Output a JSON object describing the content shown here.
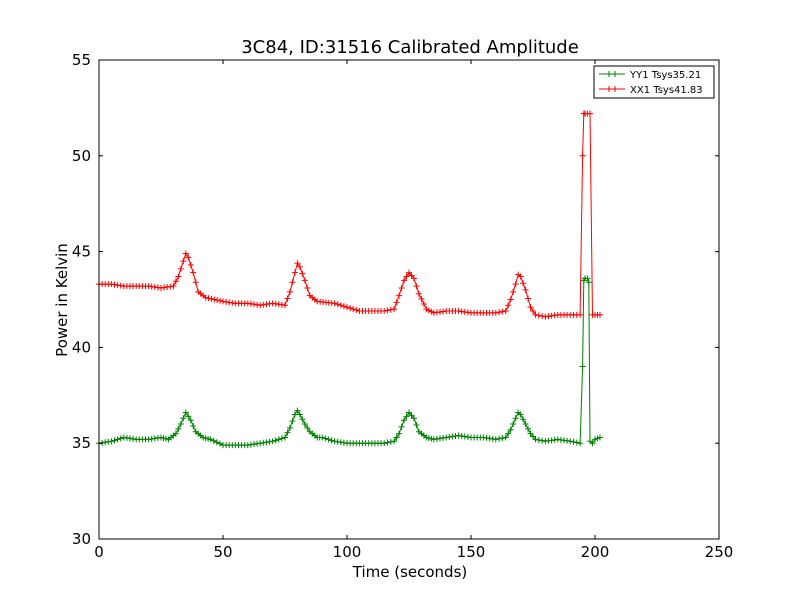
{
  "chart_data": {
    "type": "line",
    "title": "3C84, ID:31516 Calibrated Amplitude",
    "xlabel": "Time (seconds)",
    "ylabel": "Power in Kelvin",
    "xlim": [
      0,
      250
    ],
    "ylim": [
      30,
      55
    ],
    "xticks": [
      0,
      50,
      100,
      150,
      200,
      250
    ],
    "yticks": [
      30,
      35,
      40,
      45,
      50,
      55
    ],
    "grid": false,
    "legend_position": "top-right",
    "marker": "+",
    "series": [
      {
        "name": "YY1 Tsys35.21",
        "color": "#008000",
        "x": [
          0,
          5,
          10,
          15,
          20,
          25,
          28,
          31,
          33,
          35,
          37,
          39,
          42,
          45,
          50,
          55,
          60,
          65,
          70,
          75,
          77,
          79,
          80,
          81,
          83,
          85,
          88,
          90,
          95,
          100,
          105,
          110,
          115,
          119,
          121,
          123,
          125,
          127,
          129,
          132,
          135,
          140,
          145,
          150,
          155,
          160,
          164,
          166,
          168,
          169,
          170,
          172,
          174,
          176,
          180,
          185,
          190,
          194,
          195,
          195.5,
          196,
          197,
          197.5,
          198,
          199,
          200,
          202
        ],
        "values": [
          35.0,
          35.1,
          35.3,
          35.2,
          35.2,
          35.3,
          35.2,
          35.5,
          36.0,
          36.6,
          36.2,
          35.6,
          35.3,
          35.2,
          34.9,
          34.9,
          34.9,
          35.0,
          35.1,
          35.3,
          35.8,
          36.5,
          36.7,
          36.5,
          36.0,
          35.6,
          35.3,
          35.3,
          35.1,
          35.0,
          35.0,
          35.0,
          35.0,
          35.1,
          35.5,
          36.2,
          36.6,
          36.3,
          35.6,
          35.3,
          35.2,
          35.3,
          35.4,
          35.3,
          35.3,
          35.2,
          35.3,
          35.7,
          36.3,
          36.6,
          36.5,
          36.0,
          35.5,
          35.2,
          35.1,
          35.2,
          35.1,
          35.0,
          39.0,
          43.5,
          43.6,
          43.6,
          43.4,
          35.1,
          35.0,
          35.2,
          35.3
        ]
      },
      {
        "name": "XX1 Tsys41.83",
        "color": "#ff0000",
        "x": [
          0,
          5,
          10,
          15,
          20,
          25,
          30,
          32,
          34,
          35,
          36,
          38,
          40,
          43,
          50,
          55,
          60,
          65,
          70,
          75,
          77,
          79,
          80,
          81,
          83,
          85,
          88,
          95,
          100,
          105,
          110,
          115,
          119,
          121,
          123,
          125,
          127,
          129,
          132,
          135,
          140,
          145,
          150,
          155,
          160,
          164,
          166,
          168,
          169,
          170,
          172,
          174,
          176,
          180,
          185,
          190,
          194,
          195,
          195.5,
          196,
          197,
          198,
          199,
          200,
          202
        ],
        "values": [
          43.3,
          43.3,
          43.2,
          43.2,
          43.2,
          43.1,
          43.2,
          43.7,
          44.5,
          44.9,
          44.7,
          43.9,
          42.9,
          42.6,
          42.4,
          42.3,
          42.3,
          42.2,
          42.3,
          42.2,
          42.9,
          43.9,
          44.4,
          44.2,
          43.5,
          42.7,
          42.4,
          42.3,
          42.1,
          41.9,
          41.9,
          41.9,
          42.0,
          42.7,
          43.5,
          43.9,
          43.6,
          42.8,
          42.0,
          41.8,
          41.9,
          41.9,
          41.8,
          41.8,
          41.8,
          41.9,
          42.5,
          43.3,
          43.8,
          43.7,
          43.0,
          42.1,
          41.7,
          41.6,
          41.7,
          41.7,
          41.7,
          50.0,
          52.2,
          52.2,
          52.2,
          52.2,
          41.7,
          41.7,
          41.7
        ]
      }
    ]
  }
}
